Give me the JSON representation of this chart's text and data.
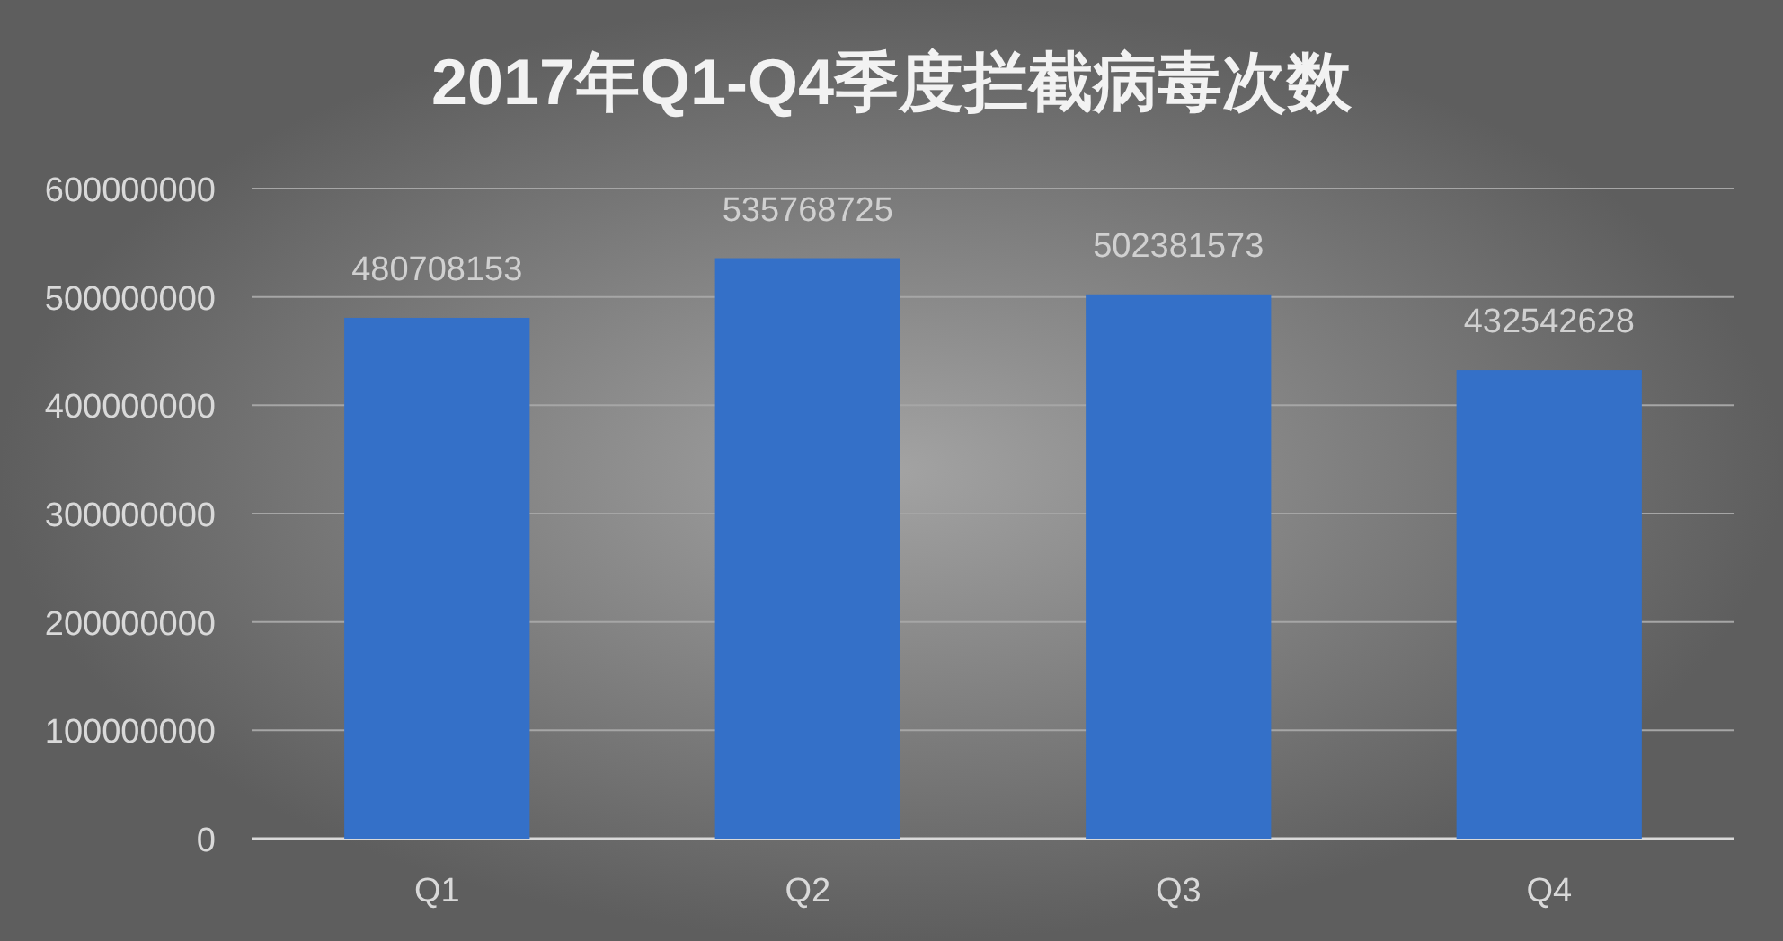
{
  "chart_data": {
    "type": "bar",
    "title": "2017年Q1-Q4季度拦截病毒次数",
    "categories": [
      "Q1",
      "Q2",
      "Q3",
      "Q4"
    ],
    "values": [
      480708153,
      535768725,
      502381573,
      432542628
    ],
    "color": "#3470c8",
    "ylim": [
      0,
      600000000
    ],
    "yticks": [
      0,
      100000000,
      200000000,
      300000000,
      400000000,
      500000000,
      600000000
    ],
    "grid": "y",
    "data_labels": true
  }
}
